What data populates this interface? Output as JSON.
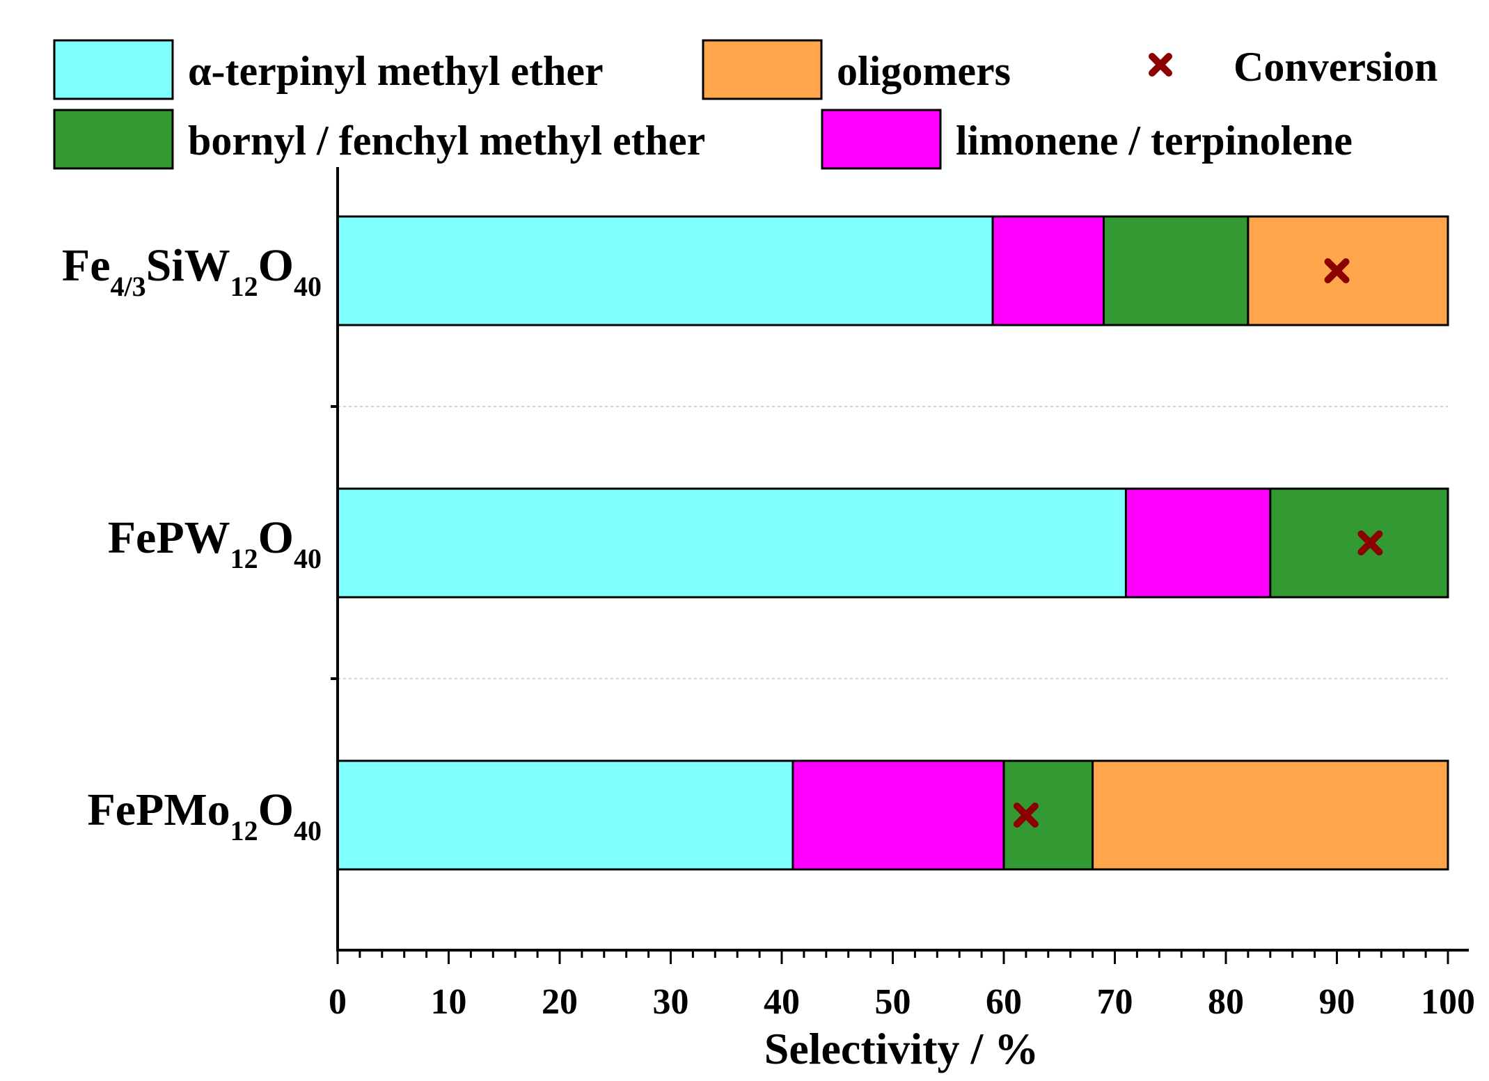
{
  "chart_data": {
    "type": "bar",
    "orientation": "horizontal",
    "stacked": true,
    "xlabel": "Selectivity / %",
    "xlim": [
      0,
      100
    ],
    "xticks": [
      0,
      10,
      20,
      30,
      40,
      50,
      60,
      70,
      80,
      90,
      100
    ],
    "tick_labels": [
      "0",
      "10",
      "20",
      "30",
      "40",
      "50",
      "60",
      "70",
      "80",
      "90",
      "100"
    ],
    "legend_position": "top",
    "categories": [
      {
        "id": "fe43siw12o40",
        "parts": [
          "Fe",
          "4/3",
          "SiW",
          "12",
          "O",
          "40"
        ]
      },
      {
        "id": "fepw12o40",
        "parts": [
          "FePW",
          "12",
          "O",
          "40"
        ]
      },
      {
        "id": "fepmo12o40",
        "parts": [
          "FePMo",
          "12",
          "O",
          "40"
        ]
      }
    ],
    "series": [
      {
        "name": "α-terpinyl methyl ether",
        "color": "#80FFFF",
        "values": [
          59,
          71,
          41
        ]
      },
      {
        "name": "limonene / terpinolene",
        "color": "#FF00FF",
        "values": [
          10,
          13,
          19
        ]
      },
      {
        "name": "bornyl / fenchyl methyl ether",
        "color": "#339933",
        "values": [
          13,
          16,
          8
        ]
      },
      {
        "name": "oligomers",
        "color": "#FFA64D",
        "values": [
          18,
          0,
          32
        ]
      }
    ],
    "conversion": {
      "name": "Conversion",
      "color": "#8B0000",
      "marker": "x",
      "values": [
        90,
        93,
        62
      ]
    }
  }
}
